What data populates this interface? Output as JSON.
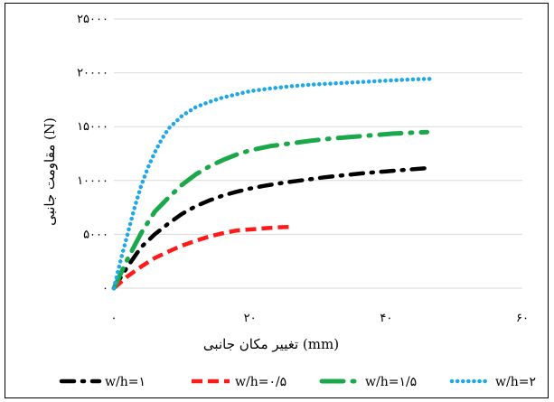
{
  "chart_data": {
    "type": "line",
    "title": "",
    "xlabel": "تغییر مکان جانبی (mm)",
    "ylabel": "مقاومت جانبی (N)",
    "xlim": [
      0,
      60
    ],
    "ylim": [
      0,
      25000
    ],
    "x_ticks": [
      {
        "value": 0,
        "label": "۰"
      },
      {
        "value": 20,
        "label": "۲۰"
      },
      {
        "value": 40,
        "label": "۴۰"
      },
      {
        "value": 60,
        "label": "۶۰"
      }
    ],
    "y_ticks": [
      {
        "value": 0,
        "label": "۰"
      },
      {
        "value": 5000,
        "label": "۵۰۰۰"
      },
      {
        "value": 10000,
        "label": "۱۰۰۰۰"
      },
      {
        "value": 15000,
        "label": "۱۵۰۰۰"
      },
      {
        "value": 20000,
        "label": "۲۰۰۰۰"
      },
      {
        "value": 25000,
        "label": "۲۵۰۰۰"
      }
    ],
    "grid": "horizontal",
    "legend_position": "bottom",
    "series": [
      {
        "name": "w/h=۱",
        "color": "#000000",
        "style": "dash-dot",
        "points": [
          [
            0,
            0
          ],
          [
            2,
            2000
          ],
          [
            4,
            3800
          ],
          [
            6,
            5000
          ],
          [
            8,
            6000
          ],
          [
            10,
            6900
          ],
          [
            12,
            7600
          ],
          [
            14,
            8150
          ],
          [
            16,
            8600
          ],
          [
            18,
            8950
          ],
          [
            20,
            9250
          ],
          [
            22,
            9500
          ],
          [
            25,
            9800
          ],
          [
            28,
            10050
          ],
          [
            31,
            10300
          ],
          [
            34,
            10500
          ],
          [
            37,
            10700
          ],
          [
            40,
            10850
          ],
          [
            43,
            11000
          ],
          [
            46,
            11150
          ]
        ]
      },
      {
        "name": "w/h=۰/۵",
        "color": "#ff1a1a",
        "style": "dashed",
        "points": [
          [
            0,
            0
          ],
          [
            2,
            1100
          ],
          [
            4,
            2000
          ],
          [
            6,
            2800
          ],
          [
            8,
            3400
          ],
          [
            10,
            3950
          ],
          [
            12,
            4400
          ],
          [
            14,
            4800
          ],
          [
            16,
            5100
          ],
          [
            18,
            5350
          ],
          [
            20,
            5450
          ],
          [
            22,
            5550
          ],
          [
            24,
            5650
          ],
          [
            26,
            5700
          ]
        ]
      },
      {
        "name": "w/h=۱/۵",
        "color": "#1aa84a",
        "style": "long-dash-dot",
        "points": [
          [
            0,
            0
          ],
          [
            2,
            2700
          ],
          [
            4,
            5100
          ],
          [
            6,
            7100
          ],
          [
            8,
            8400
          ],
          [
            10,
            9600
          ],
          [
            12,
            10550
          ],
          [
            14,
            11300
          ],
          [
            16,
            11900
          ],
          [
            18,
            12400
          ],
          [
            20,
            12800
          ],
          [
            23,
            13200
          ],
          [
            26,
            13450
          ],
          [
            29,
            13700
          ],
          [
            32,
            13900
          ],
          [
            35,
            14050
          ],
          [
            38,
            14200
          ],
          [
            41,
            14350
          ],
          [
            44,
            14450
          ],
          [
            46,
            14500
          ]
        ]
      },
      {
        "name": "w/h=۲",
        "color": "#1ea8e8",
        "style": "dotted",
        "points": [
          [
            0,
            0
          ],
          [
            1,
            2600
          ],
          [
            2,
            5000
          ],
          [
            3,
            7400
          ],
          [
            4,
            9500
          ],
          [
            5,
            11200
          ],
          [
            6,
            12600
          ],
          [
            7,
            13800
          ],
          [
            8,
            14800
          ],
          [
            10,
            16000
          ],
          [
            12,
            16800
          ],
          [
            14,
            17300
          ],
          [
            16,
            17700
          ],
          [
            18,
            18000
          ],
          [
            20,
            18300
          ],
          [
            23,
            18550
          ],
          [
            26,
            18750
          ],
          [
            29,
            18900
          ],
          [
            32,
            19000
          ],
          [
            35,
            19100
          ],
          [
            38,
            19200
          ],
          [
            41,
            19300
          ],
          [
            44,
            19400
          ],
          [
            47,
            19450
          ]
        ]
      }
    ]
  }
}
